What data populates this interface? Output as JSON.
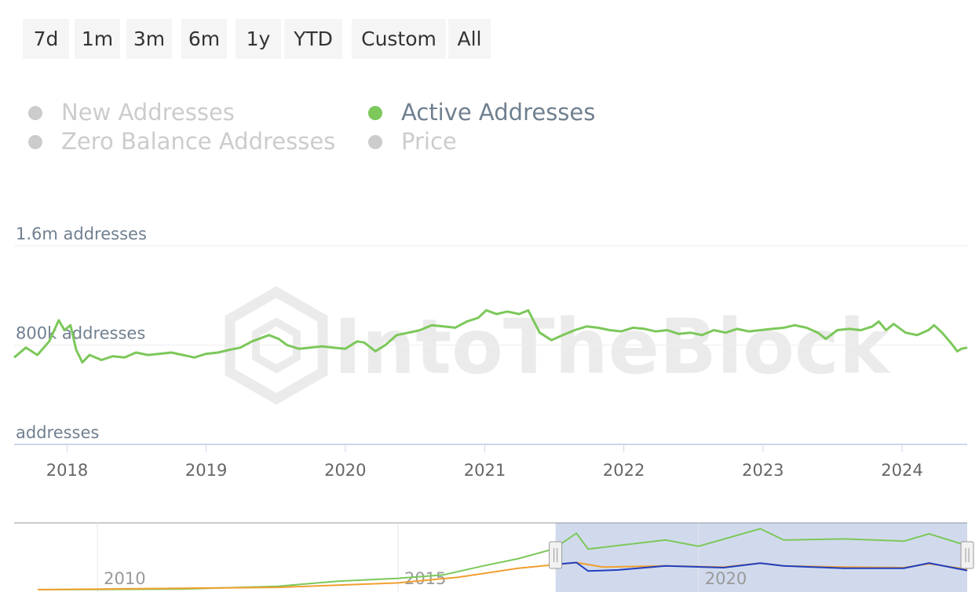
{
  "range_selector": {
    "buttons": [
      {
        "label": "7d"
      },
      {
        "label": "1m"
      },
      {
        "label": "3m"
      },
      {
        "label": "6m"
      },
      {
        "label": "1y"
      },
      {
        "label": "YTD"
      },
      {
        "label": "Custom"
      },
      {
        "label": "All"
      }
    ]
  },
  "legend": {
    "items": [
      {
        "label": "New Addresses",
        "visible": false
      },
      {
        "label": "Active Addresses",
        "visible": true,
        "color": "#7cc85a"
      },
      {
        "label": "Zero Balance Addresses",
        "visible": false
      },
      {
        "label": "Price",
        "visible": false
      }
    ]
  },
  "watermark": "IntoTheBlock",
  "chart_data": {
    "type": "line",
    "x_axis_type": "datetime",
    "xlim": [
      "2017-08-15",
      "2024-06-20"
    ],
    "ylim": [
      0,
      1600000
    ],
    "y_tick_labels": [
      "addresses",
      "800k addresses",
      "1.6m addresses"
    ],
    "y_tick_values": [
      0,
      800000,
      1600000
    ],
    "x_tick_labels": [
      "2018",
      "2019",
      "2020",
      "2021",
      "2022",
      "2023",
      "2024"
    ],
    "grid": true,
    "series": [
      {
        "name": "Active Addresses",
        "color": "#7cc85a",
        "points": [
          [
            "2017-08-15",
            700000
          ],
          [
            "2017-09-15",
            780000
          ],
          [
            "2017-10-15",
            720000
          ],
          [
            "2017-11-15",
            830000
          ],
          [
            "2017-12-10",
            1000000
          ],
          [
            "2017-12-25",
            920000
          ],
          [
            "2018-01-10",
            960000
          ],
          [
            "2018-01-25",
            760000
          ],
          [
            "2018-02-10",
            660000
          ],
          [
            "2018-03-01",
            720000
          ],
          [
            "2018-04-01",
            680000
          ],
          [
            "2018-05-01",
            710000
          ],
          [
            "2018-06-01",
            700000
          ],
          [
            "2018-07-01",
            740000
          ],
          [
            "2018-08-01",
            720000
          ],
          [
            "2018-09-01",
            730000
          ],
          [
            "2018-10-01",
            740000
          ],
          [
            "2018-11-01",
            720000
          ],
          [
            "2018-12-01",
            700000
          ],
          [
            "2019-01-01",
            730000
          ],
          [
            "2019-02-01",
            740000
          ],
          [
            "2019-03-01",
            760000
          ],
          [
            "2019-04-01",
            780000
          ],
          [
            "2019-05-01",
            830000
          ],
          [
            "2019-06-15",
            880000
          ],
          [
            "2019-07-10",
            850000
          ],
          [
            "2019-08-01",
            800000
          ],
          [
            "2019-09-01",
            770000
          ],
          [
            "2019-10-01",
            780000
          ],
          [
            "2019-11-01",
            790000
          ],
          [
            "2019-12-01",
            780000
          ],
          [
            "2020-01-01",
            770000
          ],
          [
            "2020-02-01",
            830000
          ],
          [
            "2020-02-20",
            820000
          ],
          [
            "2020-03-20",
            750000
          ],
          [
            "2020-04-15",
            800000
          ],
          [
            "2020-05-15",
            880000
          ],
          [
            "2020-06-15",
            900000
          ],
          [
            "2020-07-15",
            920000
          ],
          [
            "2020-08-15",
            960000
          ],
          [
            "2020-09-15",
            950000
          ],
          [
            "2020-10-15",
            940000
          ],
          [
            "2020-11-15",
            990000
          ],
          [
            "2020-12-15",
            1020000
          ],
          [
            "2021-01-05",
            1080000
          ],
          [
            "2021-02-01",
            1050000
          ],
          [
            "2021-03-01",
            1070000
          ],
          [
            "2021-04-01",
            1050000
          ],
          [
            "2021-04-25",
            1080000
          ],
          [
            "2021-05-25",
            900000
          ],
          [
            "2021-06-25",
            840000
          ],
          [
            "2021-07-25",
            880000
          ],
          [
            "2021-08-25",
            920000
          ],
          [
            "2021-09-25",
            950000
          ],
          [
            "2021-10-25",
            940000
          ],
          [
            "2021-11-25",
            920000
          ],
          [
            "2021-12-25",
            910000
          ],
          [
            "2022-01-25",
            940000
          ],
          [
            "2022-02-25",
            930000
          ],
          [
            "2022-03-25",
            910000
          ],
          [
            "2022-04-25",
            920000
          ],
          [
            "2022-05-25",
            890000
          ],
          [
            "2022-06-25",
            900000
          ],
          [
            "2022-07-25",
            880000
          ],
          [
            "2022-08-25",
            920000
          ],
          [
            "2022-09-25",
            900000
          ],
          [
            "2022-10-25",
            930000
          ],
          [
            "2022-11-25",
            910000
          ],
          [
            "2022-12-25",
            920000
          ],
          [
            "2023-01-25",
            930000
          ],
          [
            "2023-02-25",
            940000
          ],
          [
            "2023-03-25",
            960000
          ],
          [
            "2023-04-25",
            940000
          ],
          [
            "2023-05-25",
            900000
          ],
          [
            "2023-06-15",
            850000
          ],
          [
            "2023-07-15",
            920000
          ],
          [
            "2023-08-15",
            930000
          ],
          [
            "2023-09-15",
            920000
          ],
          [
            "2023-10-15",
            950000
          ],
          [
            "2023-11-01",
            990000
          ],
          [
            "2023-11-20",
            920000
          ],
          [
            "2023-12-10",
            970000
          ],
          [
            "2024-01-10",
            900000
          ],
          [
            "2024-02-10",
            880000
          ],
          [
            "2024-03-10",
            920000
          ],
          [
            "2024-03-25",
            960000
          ],
          [
            "2024-04-15",
            900000
          ],
          [
            "2024-05-10",
            810000
          ],
          [
            "2024-05-25",
            750000
          ],
          [
            "2024-06-05",
            770000
          ],
          [
            "2024-06-20",
            780000
          ]
        ]
      }
    ],
    "navigator": {
      "x_tick_labels": [
        "2010",
        "2015",
        "2020"
      ],
      "selected_range": [
        "2017-08-15",
        "2024-06-20"
      ],
      "series": [
        {
          "color": "#7cc85a",
          "points": [
            [
              "2009-01-03",
              0
            ],
            [
              "2011-06-01",
              10000
            ],
            [
              "2013-01-01",
              60000
            ],
            [
              "2014-01-01",
              150000
            ],
            [
              "2015-01-01",
              200000
            ],
            [
              "2015-10-01",
              260000
            ],
            [
              "2016-06-01",
              420000
            ],
            [
              "2017-01-01",
              550000
            ],
            [
              "2017-08-01",
              720000
            ],
            [
              "2017-12-20",
              1000000
            ],
            [
              "2018-03-01",
              720000
            ],
            [
              "2019-06-15",
              880000
            ],
            [
              "2020-01-01",
              770000
            ],
            [
              "2021-01-10",
              1080000
            ],
            [
              "2021-06-01",
              880000
            ],
            [
              "2022-06-01",
              900000
            ],
            [
              "2023-06-01",
              860000
            ],
            [
              "2023-11-01",
              990000
            ],
            [
              "2024-06-20",
              780000
            ]
          ]
        },
        {
          "color": "#f0a030",
          "points": [
            [
              "2009-01-03",
              0
            ],
            [
              "2013-01-01",
              40000
            ],
            [
              "2015-01-01",
              120000
            ],
            [
              "2016-01-01",
              220000
            ],
            [
              "2017-01-01",
              380000
            ],
            [
              "2017-12-20",
              480000
            ],
            [
              "2018-06-01",
              400000
            ],
            [
              "2019-06-15",
              420000
            ],
            [
              "2020-06-01",
              400000
            ],
            [
              "2021-01-10",
              470000
            ],
            [
              "2021-06-01",
              420000
            ],
            [
              "2022-06-01",
              400000
            ],
            [
              "2023-06-01",
              390000
            ],
            [
              "2023-11-01",
              460000
            ],
            [
              "2024-06-20",
              360000
            ]
          ]
        },
        {
          "color": "#1f3fbf",
          "points": [
            [
              "2017-08-15",
              450000
            ],
            [
              "2017-12-20",
              480000
            ],
            [
              "2018-03-01",
              330000
            ],
            [
              "2018-09-01",
              350000
            ],
            [
              "2019-06-15",
              420000
            ],
            [
              "2020-06-01",
              390000
            ],
            [
              "2021-01-10",
              470000
            ],
            [
              "2021-06-01",
              420000
            ],
            [
              "2022-06-01",
              380000
            ],
            [
              "2023-06-01",
              380000
            ],
            [
              "2023-11-01",
              470000
            ],
            [
              "2024-06-20",
              340000
            ]
          ]
        }
      ]
    }
  }
}
